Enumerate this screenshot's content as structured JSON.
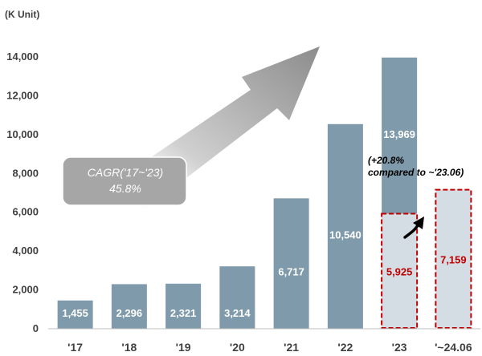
{
  "chart_data": {
    "type": "bar",
    "unit_label": "(K Unit)",
    "categories": [
      "'17",
      "'18",
      "'19",
      "'20",
      "'21",
      "'22",
      "'23",
      "'~24.06"
    ],
    "series": [
      {
        "values": [
          1455,
          2296,
          2321,
          3214,
          6717,
          10540,
          13969,
          null
        ]
      },
      {
        "values": [
          null,
          null,
          null,
          null,
          null,
          null,
          5925,
          7159
        ]
      }
    ],
    "data_labels": [
      "1,455",
      "2,296",
      "2,321",
      "3,214",
      "6,717",
      "10,540",
      "13,969",
      "7,159"
    ],
    "partial_label": "5,925",
    "yticks": [
      "0",
      "2,000",
      "4,000",
      "6,000",
      "8,000",
      "10,000",
      "12,000",
      "14,000"
    ],
    "ylim": [
      0,
      14000
    ],
    "grid": false,
    "cagr_line1": "CAGR('17~'23)",
    "cagr_line2": "45.8%",
    "growth_note_line1": "(+20.8%",
    "growth_note_line2": "compared to ~'23.06)",
    "colors": {
      "bar": "#7f9aab",
      "highlight": "#d5dde4",
      "dash": "#c00000",
      "badge": "#a6a6a6",
      "axis": "#bfbfbf"
    }
  }
}
